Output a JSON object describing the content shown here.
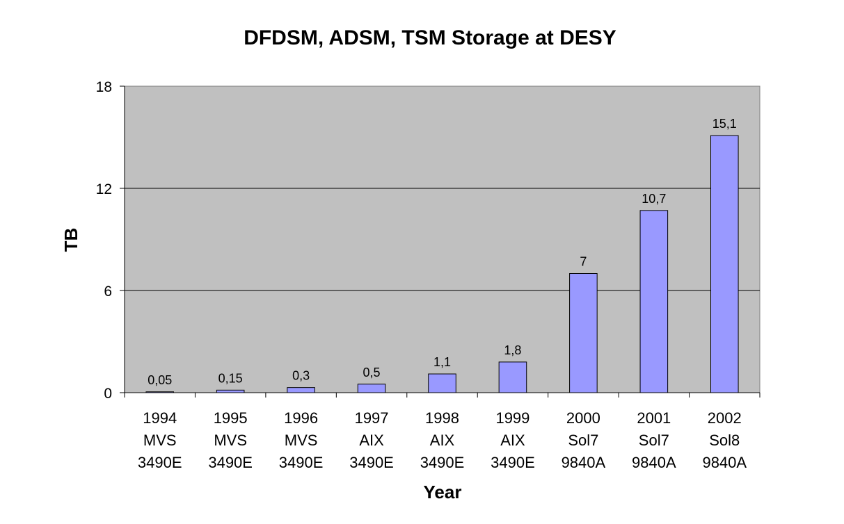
{
  "chart_data": {
    "type": "bar",
    "title": "DFDSM, ADSM, TSM Storage at DESY",
    "xlabel": "Year",
    "ylabel": "TB",
    "ylim": [
      0,
      18
    ],
    "yticks": [
      "0",
      "6",
      "12",
      "18"
    ],
    "grid": true,
    "legend": "none",
    "categories": [
      [
        "1994",
        "MVS",
        "3490E"
      ],
      [
        "1995",
        "MVS",
        "3490E"
      ],
      [
        "1996",
        "MVS",
        "3490E"
      ],
      [
        "1997",
        "AIX",
        "3490E"
      ],
      [
        "1998",
        "AIX",
        "3490E"
      ],
      [
        "1999",
        "AIX",
        "3490E"
      ],
      [
        "2000",
        "Sol7",
        "9840A"
      ],
      [
        "2001",
        "Sol7",
        "9840A"
      ],
      [
        "2002",
        "Sol8",
        "9840A"
      ]
    ],
    "values": [
      0.05,
      0.15,
      0.3,
      0.5,
      1.1,
      1.8,
      7,
      10.7,
      15.1
    ],
    "data_labels": [
      "0,05",
      "0,15",
      "0,3",
      "0,5",
      "1,1",
      "1,8",
      "7",
      "10,7",
      "15,1"
    ],
    "colors": {
      "plot_background": "#c0c0c0",
      "bar_fill": "#9999ff",
      "bar_stroke": "#000000",
      "gridline": "#000000"
    }
  }
}
